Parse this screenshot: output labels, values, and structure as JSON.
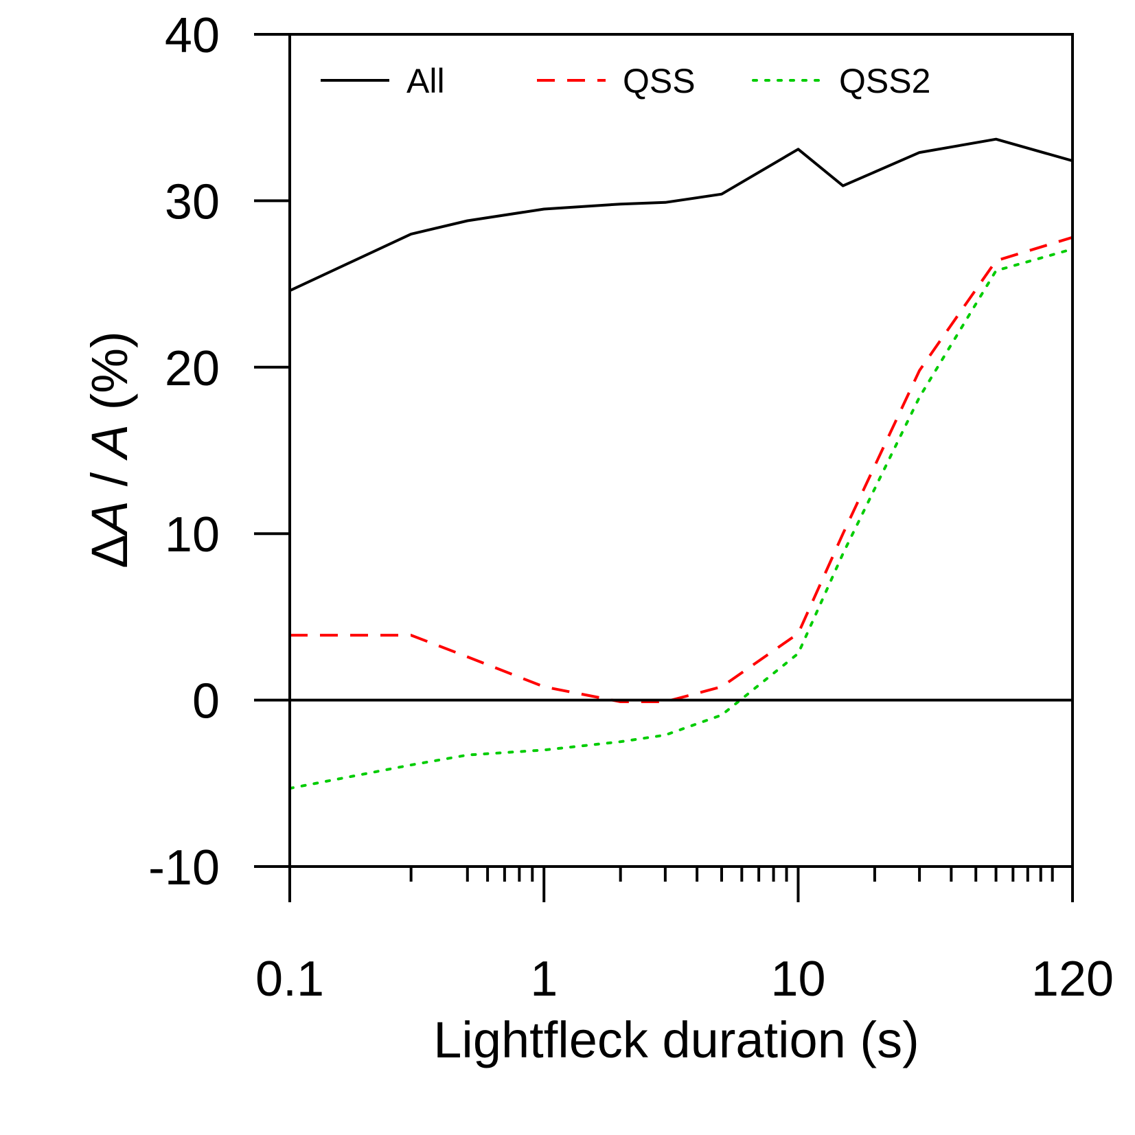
{
  "chart_data": {
    "type": "line",
    "xlabel": "Lightfleck duration (s)",
    "ylabel": {
      "delta": "Δ",
      "var1": "A",
      "slash": " / ",
      "var2": "A",
      "unit": " (%)"
    },
    "x_scale": "log",
    "xlim": [
      0.1,
      120
    ],
    "ylim": [
      -10,
      40
    ],
    "x_tick_labels": [
      {
        "value": 0.1,
        "label": "0.1"
      },
      {
        "value": 1,
        "label": "1"
      },
      {
        "value": 10,
        "label": "10"
      },
      {
        "value": 120,
        "label": "120"
      }
    ],
    "x_minor_ticks": [
      0.3,
      0.5,
      0.6,
      0.7,
      0.8,
      0.9,
      2,
      3,
      4,
      5,
      6,
      7,
      8,
      9,
      20,
      30,
      40,
      50,
      60,
      70,
      80,
      90,
      100
    ],
    "y_ticks": [
      {
        "value": -10,
        "label": "-10"
      },
      {
        "value": 0,
        "label": "0"
      },
      {
        "value": 10,
        "label": "10"
      },
      {
        "value": 20,
        "label": "20"
      },
      {
        "value": 30,
        "label": "30"
      },
      {
        "value": 40,
        "label": "40"
      }
    ],
    "zero_line": true,
    "grid": false,
    "legend_position": "top",
    "series": [
      {
        "name": "All",
        "color": "#000000",
        "style": "solid",
        "x": [
          0.1,
          0.3,
          0.5,
          1,
          2,
          3,
          5,
          10,
          15,
          30,
          60,
          120
        ],
        "y": [
          24.6,
          28.0,
          28.8,
          29.5,
          29.8,
          29.9,
          30.4,
          33.1,
          30.9,
          32.9,
          33.7,
          32.4
        ]
      },
      {
        "name": "QSS",
        "color": "#ff0000",
        "style": "dashed",
        "x": [
          0.1,
          0.3,
          0.5,
          1,
          2,
          3,
          5,
          10,
          15,
          30,
          60,
          120
        ],
        "y": [
          3.9,
          3.9,
          2.6,
          0.8,
          -0.1,
          -0.1,
          0.8,
          4.0,
          10.0,
          19.8,
          26.4,
          27.8
        ]
      },
      {
        "name": "QSS2",
        "color": "#00cc00",
        "style": "dotted",
        "x": [
          0.1,
          0.3,
          0.5,
          1,
          2,
          3,
          5,
          10,
          15,
          30,
          60,
          120
        ],
        "y": [
          -5.3,
          -3.9,
          -3.3,
          -3.0,
          -2.5,
          -2.1,
          -0.9,
          2.8,
          8.8,
          18.2,
          25.8,
          27.1
        ]
      }
    ]
  }
}
